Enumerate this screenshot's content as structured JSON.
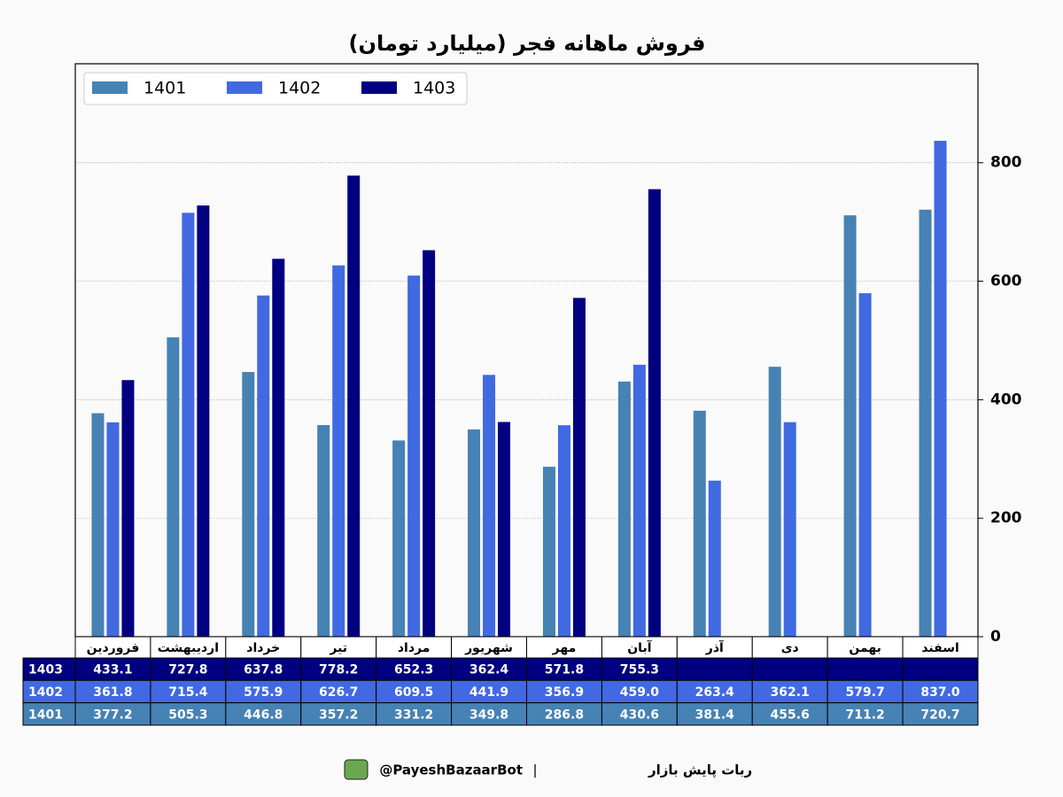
{
  "chart_data": {
    "type": "bar",
    "title": "فروش ماهانه فجر (میلیارد تومان)",
    "categories": [
      "فروردین",
      "اردیبهشت",
      "خرداد",
      "تیر",
      "مرداد",
      "شهریور",
      "مهر",
      "آبان",
      "آذر",
      "دی",
      "بهمن",
      "اسفند"
    ],
    "series": [
      {
        "name": "1401",
        "color": "#4682b4",
        "values": [
          377.2,
          505.3,
          446.8,
          357.2,
          331.2,
          349.8,
          286.8,
          430.6,
          381.4,
          455.6,
          711.2,
          720.7
        ],
        "value_labels": [
          "377.2",
          "505.3",
          "446.8",
          "357.2",
          "331.2",
          "349.8",
          "286.8",
          "430.6",
          "381.4",
          "455.6",
          "711.2",
          "720.7"
        ]
      },
      {
        "name": "1402",
        "color": "#4169e1",
        "values": [
          361.8,
          715.4,
          575.9,
          626.7,
          609.5,
          441.9,
          356.9,
          459.0,
          263.4,
          362.1,
          579.7,
          837.0
        ],
        "value_labels": [
          "361.8",
          "715.4",
          "575.9",
          "626.7",
          "609.5",
          "441.9",
          "356.9",
          "459.0",
          "263.4",
          "362.1",
          "579.7",
          "837.0"
        ]
      },
      {
        "name": "1403",
        "color": "#000080",
        "values": [
          433.1,
          727.8,
          637.8,
          778.2,
          652.3,
          362.4,
          571.8,
          755.3,
          null,
          null,
          null,
          null
        ],
        "value_labels": [
          "433.1",
          "727.8",
          "637.8",
          "778.2",
          "652.3",
          "362.4",
          "571.8",
          "755.3",
          null,
          null,
          null,
          null
        ]
      }
    ],
    "ylim": [
      0,
      967
    ],
    "yticks": [
      0,
      200,
      400,
      600,
      800
    ],
    "grid": true,
    "legend": "upper left"
  },
  "footer": {
    "name": "ربات پایش بازار",
    "separator": "|",
    "handle": "@PayeshBazaarBot"
  }
}
